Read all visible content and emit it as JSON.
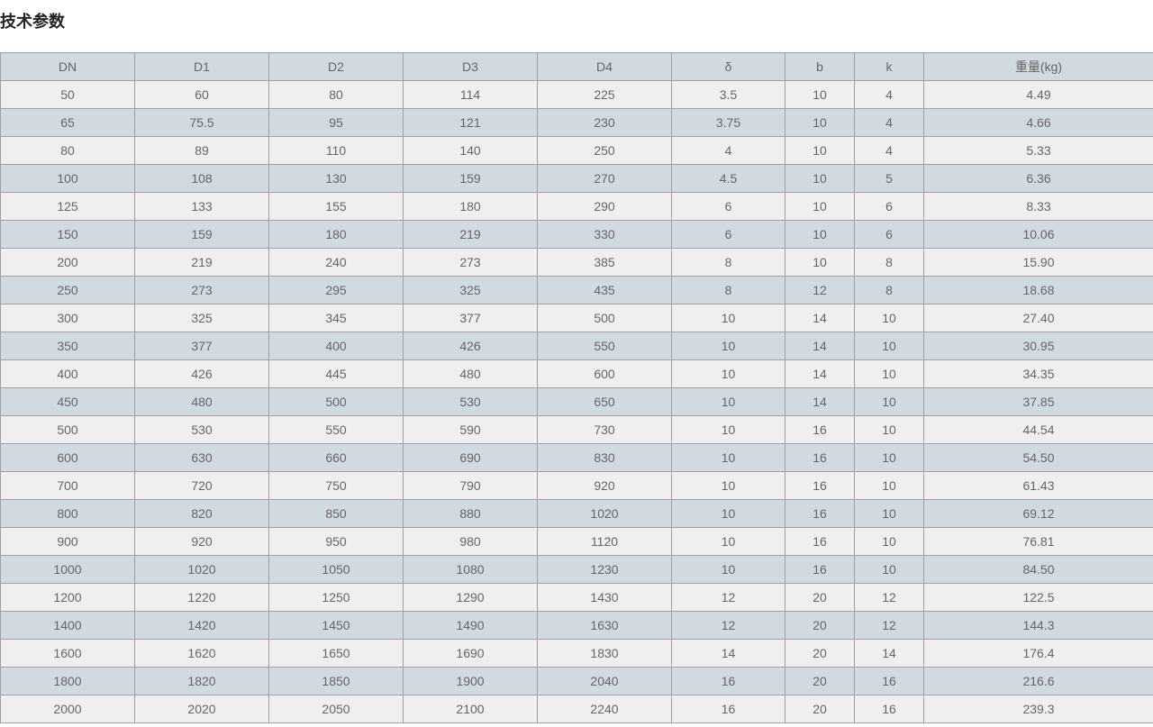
{
  "title": "技术参数",
  "table": {
    "headers": [
      "DN",
      "D1",
      "D2",
      "D3",
      "D4",
      "δ",
      "b",
      "k",
      "重量(kg)"
    ],
    "rows": [
      [
        "50",
        "60",
        "80",
        "114",
        "225",
        "3.5",
        "10",
        "4",
        "4.49"
      ],
      [
        "65",
        "75.5",
        "95",
        "121",
        "230",
        "3.75",
        "10",
        "4",
        "4.66"
      ],
      [
        "80",
        "89",
        "110",
        "140",
        "250",
        "4",
        "10",
        "4",
        "5.33"
      ],
      [
        "100",
        "108",
        "130",
        "159",
        "270",
        "4.5",
        "10",
        "5",
        "6.36"
      ],
      [
        "125",
        "133",
        "155",
        "180",
        "290",
        "6",
        "10",
        "6",
        "8.33"
      ],
      [
        "150",
        "159",
        "180",
        "219",
        "330",
        "6",
        "10",
        "6",
        "10.06"
      ],
      [
        "200",
        "219",
        "240",
        "273",
        "385",
        "8",
        "10",
        "8",
        "15.90"
      ],
      [
        "250",
        "273",
        "295",
        "325",
        "435",
        "8",
        "12",
        "8",
        "18.68"
      ],
      [
        "300",
        "325",
        "345",
        "377",
        "500",
        "10",
        "14",
        "10",
        "27.40"
      ],
      [
        "350",
        "377",
        "400",
        "426",
        "550",
        "10",
        "14",
        "10",
        "30.95"
      ],
      [
        "400",
        "426",
        "445",
        "480",
        "600",
        "10",
        "14",
        "10",
        "34.35"
      ],
      [
        "450",
        "480",
        "500",
        "530",
        "650",
        "10",
        "14",
        "10",
        "37.85"
      ],
      [
        "500",
        "530",
        "550",
        "590",
        "730",
        "10",
        "16",
        "10",
        "44.54"
      ],
      [
        "600",
        "630",
        "660",
        "690",
        "830",
        "10",
        "16",
        "10",
        "54.50"
      ],
      [
        "700",
        "720",
        "750",
        "790",
        "920",
        "10",
        "16",
        "10",
        "61.43"
      ],
      [
        "800",
        "820",
        "850",
        "880",
        "1020",
        "10",
        "16",
        "10",
        "69.12"
      ],
      [
        "900",
        "920",
        "950",
        "980",
        "1120",
        "10",
        "16",
        "10",
        "76.81"
      ],
      [
        "1000",
        "1020",
        "1050",
        "1080",
        "1230",
        "10",
        "16",
        "10",
        "84.50"
      ],
      [
        "1200",
        "1220",
        "1250",
        "1290",
        "1430",
        "12",
        "20",
        "12",
        "122.5"
      ],
      [
        "1400",
        "1420",
        "1450",
        "1490",
        "1630",
        "12",
        "20",
        "12",
        "144.3"
      ],
      [
        "1600",
        "1620",
        "1650",
        "1690",
        "1830",
        "14",
        "20",
        "14",
        "176.4"
      ],
      [
        "1800",
        "1820",
        "1850",
        "1900",
        "2040",
        "16",
        "20",
        "16",
        "216.6"
      ],
      [
        "2000",
        "2020",
        "2050",
        "2100",
        "2240",
        "16",
        "20",
        "16",
        "239.3"
      ]
    ]
  }
}
